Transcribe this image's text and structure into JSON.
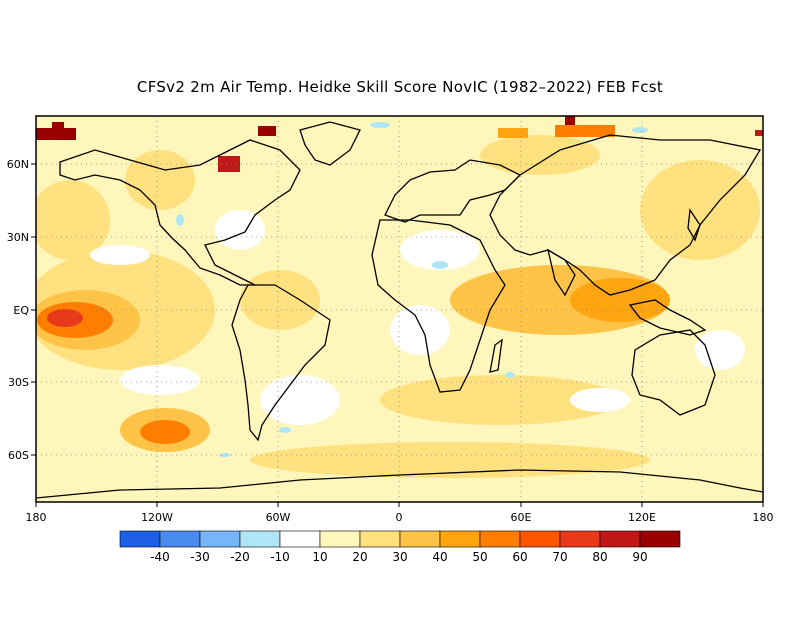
{
  "title": "CFSv2 2m Air Temp. Heidke Skill Score NovIC (1982–2022) FEB Fcst",
  "lat_labels": [
    "60N",
    "30N",
    "EQ",
    "30S",
    "60S"
  ],
  "lon_labels": [
    "180",
    "120W",
    "60W",
    "0",
    "60E",
    "120E",
    "180"
  ],
  "colorbar": {
    "colors": [
      "#1f5fe6",
      "#4a8bf0",
      "#78b4f8",
      "#aee6f7",
      "#ffffff",
      "#fff6bb",
      "#ffe27f",
      "#ffc347",
      "#ffa50f",
      "#ff7e00",
      "#ff5500",
      "#e83a1a",
      "#c01818",
      "#990000"
    ],
    "labels": [
      "-40",
      "-30",
      "-20",
      "-10",
      "10",
      "20",
      "30",
      "40",
      "50",
      "60",
      "70",
      "80",
      "90"
    ]
  }
}
